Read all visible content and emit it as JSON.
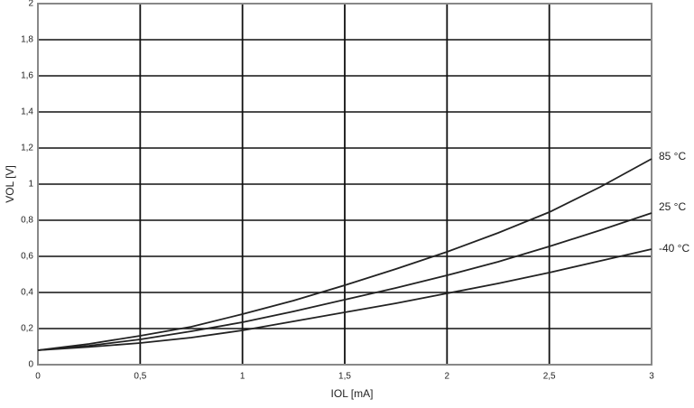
{
  "chart_data": {
    "type": "line",
    "x_label": "IOL [mA]",
    "y_label": "VOL [V]",
    "x": [
      0,
      0.25,
      0.5,
      0.75,
      1,
      1.25,
      1.5,
      1.75,
      2,
      2.25,
      2.5,
      2.75,
      3
    ],
    "series": [
      {
        "name": "85 °C",
        "color": "#222222",
        "values": [
          0.08,
          0.115,
          0.16,
          0.21,
          0.28,
          0.355,
          0.44,
          0.53,
          0.625,
          0.73,
          0.845,
          0.985,
          1.14
        ]
      },
      {
        "name": "25 °C",
        "color": "#222222",
        "values": [
          0.08,
          0.105,
          0.14,
          0.185,
          0.235,
          0.295,
          0.36,
          0.425,
          0.495,
          0.57,
          0.655,
          0.745,
          0.84
        ]
      },
      {
        "name": "-40 °C",
        "color": "#222222",
        "values": [
          0.08,
          0.098,
          0.12,
          0.15,
          0.19,
          0.24,
          0.29,
          0.34,
          0.395,
          0.45,
          0.51,
          0.575,
          0.64
        ]
      }
    ],
    "xlim": [
      0,
      3
    ],
    "xticks": [
      0,
      {
        "value": 0.5,
        "label": "0,5"
      },
      1,
      {
        "value": 1.5,
        "label": "1,5"
      },
      2,
      {
        "value": 2.5,
        "label": "2,5"
      },
      3
    ],
    "ylim": [
      0,
      2
    ],
    "yticks": [
      0,
      {
        "value": 0.2,
        "label": "0,2"
      },
      {
        "value": 0.4,
        "label": "0,4"
      },
      {
        "value": 0.6,
        "label": "0,6"
      },
      {
        "value": 0.8,
        "label": "0,8"
      },
      1,
      {
        "value": 1.2,
        "label": "1,2"
      },
      {
        "value": 1.4,
        "label": "1,4"
      },
      {
        "value": 1.6,
        "label": "1,6"
      },
      {
        "value": 1.8,
        "label": "1,8"
      },
      2
    ],
    "grid": true
  }
}
